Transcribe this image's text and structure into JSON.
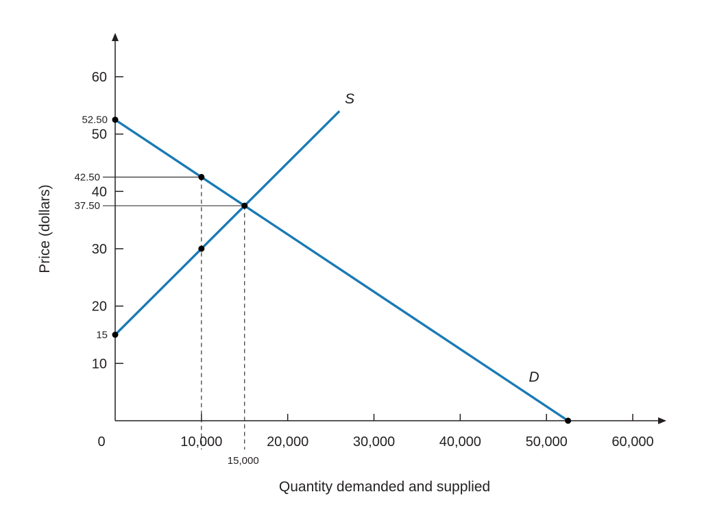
{
  "chart_data": {
    "type": "line",
    "xlabel": "Quantity demanded and supplied",
    "ylabel": "Price (dollars)",
    "xlim": [
      0,
      60000
    ],
    "ylim": [
      0,
      60
    ],
    "origin_label": "0",
    "x_ticks": [
      {
        "value": 10000,
        "label": "10,000"
      },
      {
        "value": 20000,
        "label": "20,000"
      },
      {
        "value": 30000,
        "label": "30,000"
      },
      {
        "value": 40000,
        "label": "40,000"
      },
      {
        "value": 50000,
        "label": "50,000"
      },
      {
        "value": 60000,
        "label": "60,000"
      }
    ],
    "y_ticks": [
      {
        "value": 10,
        "label": "10"
      },
      {
        "value": 20,
        "label": "20"
      },
      {
        "value": 30,
        "label": "30"
      },
      {
        "value": 40,
        "label": "40"
      },
      {
        "value": 50,
        "label": "50"
      },
      {
        "value": 60,
        "label": "60"
      }
    ],
    "series": [
      {
        "name": "S",
        "color": "#1a7ab5",
        "x": [
          0,
          26000
        ],
        "y": [
          15,
          54
        ]
      },
      {
        "name": "D",
        "color": "#1a7ab5",
        "x": [
          0,
          52500
        ],
        "y": [
          52.5,
          0
        ]
      }
    ],
    "points": [
      {
        "x": 0,
        "y": 52.5
      },
      {
        "x": 10000,
        "y": 42.5
      },
      {
        "x": 15000,
        "y": 37.5
      },
      {
        "x": 10000,
        "y": 30
      },
      {
        "x": 0,
        "y": 15
      },
      {
        "x": 52500,
        "y": 0
      }
    ],
    "reference_y": [
      {
        "value": 52.5,
        "label": "52.50",
        "leader": false
      },
      {
        "value": 42.5,
        "label": "42.50",
        "leader": true,
        "to_x": 10000
      },
      {
        "value": 37.5,
        "label": "37.50",
        "leader": true,
        "to_x": 15000
      },
      {
        "value": 15,
        "label": "15",
        "leader": false
      }
    ],
    "reference_x": [
      {
        "value": 10000,
        "label": "",
        "from_y": 42.5
      },
      {
        "value": 15000,
        "label": "15,000",
        "from_y": 37.5
      }
    ],
    "annotations": [
      {
        "text": "S",
        "series": "S"
      },
      {
        "text": "D",
        "series": "D"
      }
    ],
    "grid": false,
    "line_color": "#1a7ab5",
    "axis_color": "#231f20"
  }
}
